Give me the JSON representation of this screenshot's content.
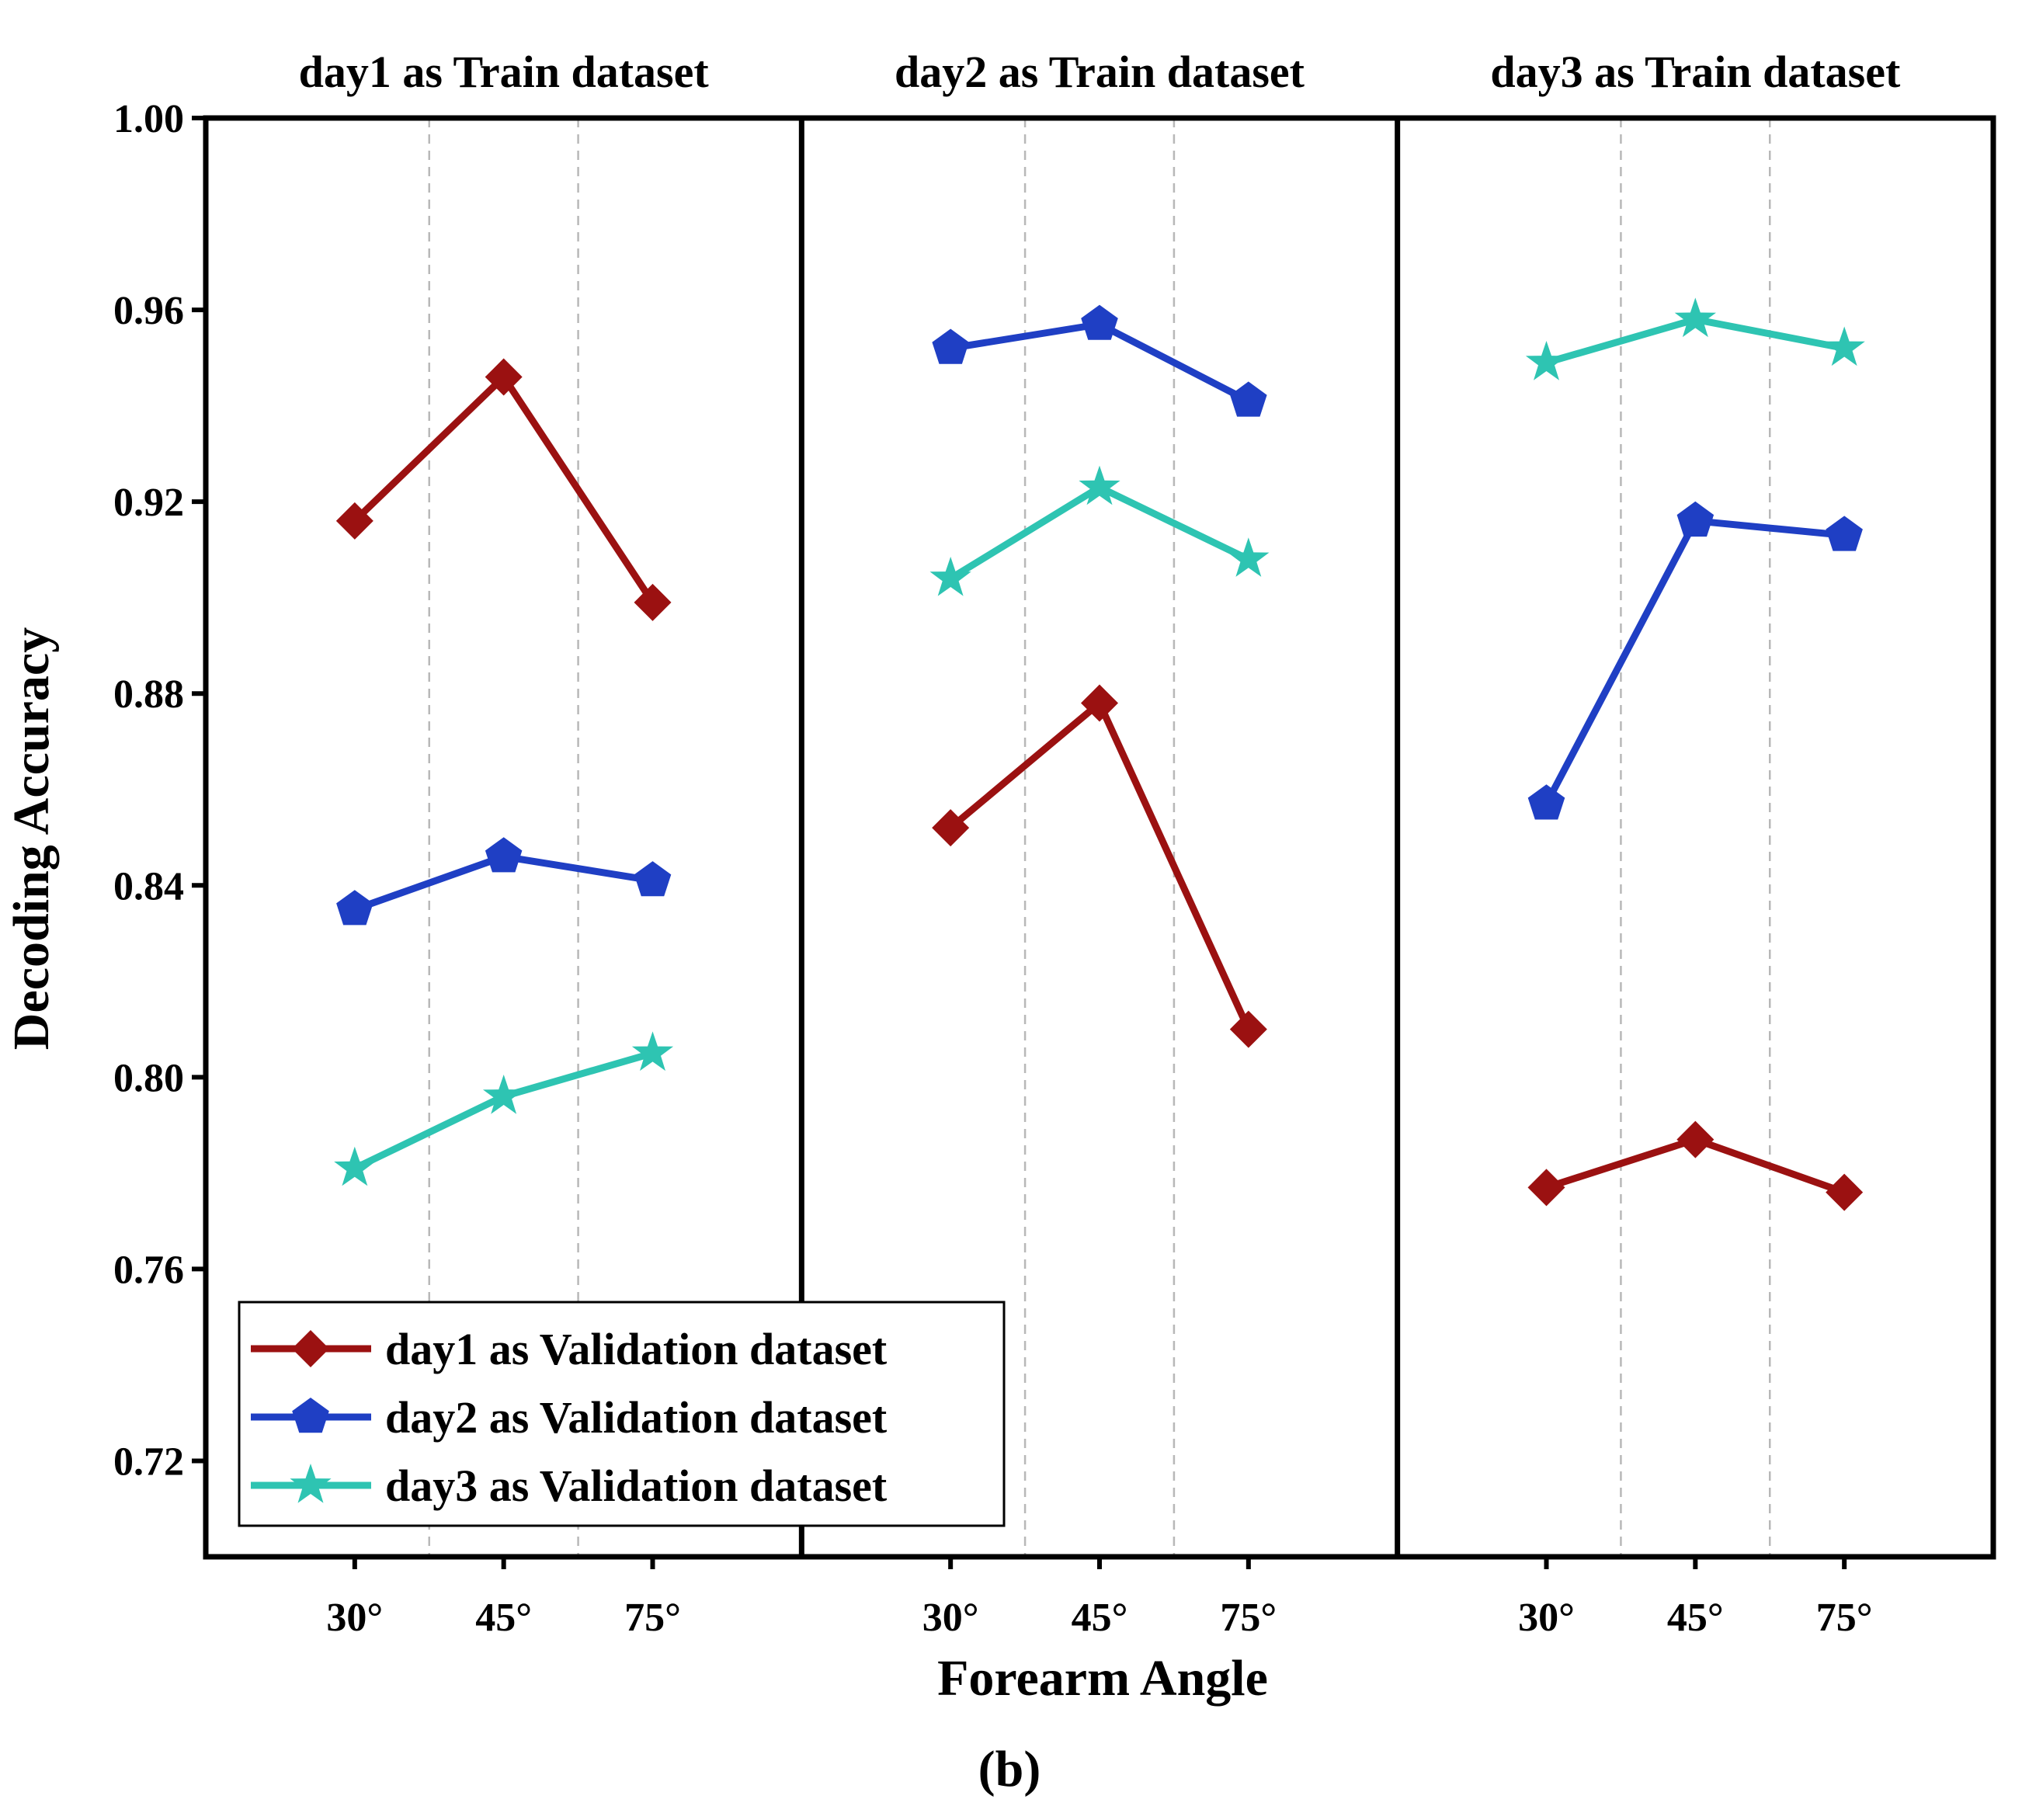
{
  "chart_data": {
    "type": "line",
    "layout": "three side-by-side panels sharing y-axis",
    "ylabel": "Decoding Accuracy",
    "xlabel": "Forearm Angle",
    "caption": "(b)",
    "ylim": [
      0.7,
      1.0
    ],
    "yticks": [
      0.72,
      0.76,
      0.8,
      0.84,
      0.88,
      0.92,
      0.96,
      1.0
    ],
    "ytick_labels": [
      "0.72",
      "0.76",
      "0.80",
      "0.84",
      "0.88",
      "0.92",
      "0.96",
      "1.00"
    ],
    "categories": [
      "30°",
      "45°",
      "75°"
    ],
    "grid": "dashed vertical lines between categories",
    "legend": {
      "position": "bottom-left",
      "entries": [
        "day1 as Validation dataset",
        "day2 as Validation dataset",
        "day3 as Validation dataset"
      ]
    },
    "series_style": [
      {
        "name": "day1 as Validation dataset",
        "color": "#9B1111",
        "marker": "diamond"
      },
      {
        "name": "day2 as Validation dataset",
        "color": "#1F3FC4",
        "marker": "pentagon"
      },
      {
        "name": "day3 as Validation dataset",
        "color": "#2EC4B2",
        "marker": "star"
      }
    ],
    "panels": [
      {
        "title": "day1 as Train dataset",
        "series": [
          {
            "name": "day1 as Validation dataset",
            "values": [
              0.916,
              0.946,
              0.899
            ]
          },
          {
            "name": "day2 as Validation dataset",
            "values": [
              0.835,
              0.846,
              0.841
            ]
          },
          {
            "name": "day3 as Validation dataset",
            "values": [
              0.781,
              0.796,
              0.805
            ]
          }
        ]
      },
      {
        "title": "day2 as Train dataset",
        "series": [
          {
            "name": "day1 as Validation dataset",
            "values": [
              0.852,
              0.878,
              0.81
            ]
          },
          {
            "name": "day2 as Validation dataset",
            "values": [
              0.952,
              0.957,
              0.941
            ]
          },
          {
            "name": "day3 as Validation dataset",
            "values": [
              0.904,
              0.923,
              0.908
            ]
          }
        ]
      },
      {
        "title": "day3 as Train dataset",
        "series": [
          {
            "name": "day1 as Validation dataset",
            "values": [
              0.777,
              0.787,
              0.776
            ]
          },
          {
            "name": "day2 as Validation dataset",
            "values": [
              0.857,
              0.916,
              0.913
            ]
          },
          {
            "name": "day3 as Validation dataset",
            "values": [
              0.949,
              0.958,
              0.952
            ]
          }
        ]
      }
    ]
  }
}
